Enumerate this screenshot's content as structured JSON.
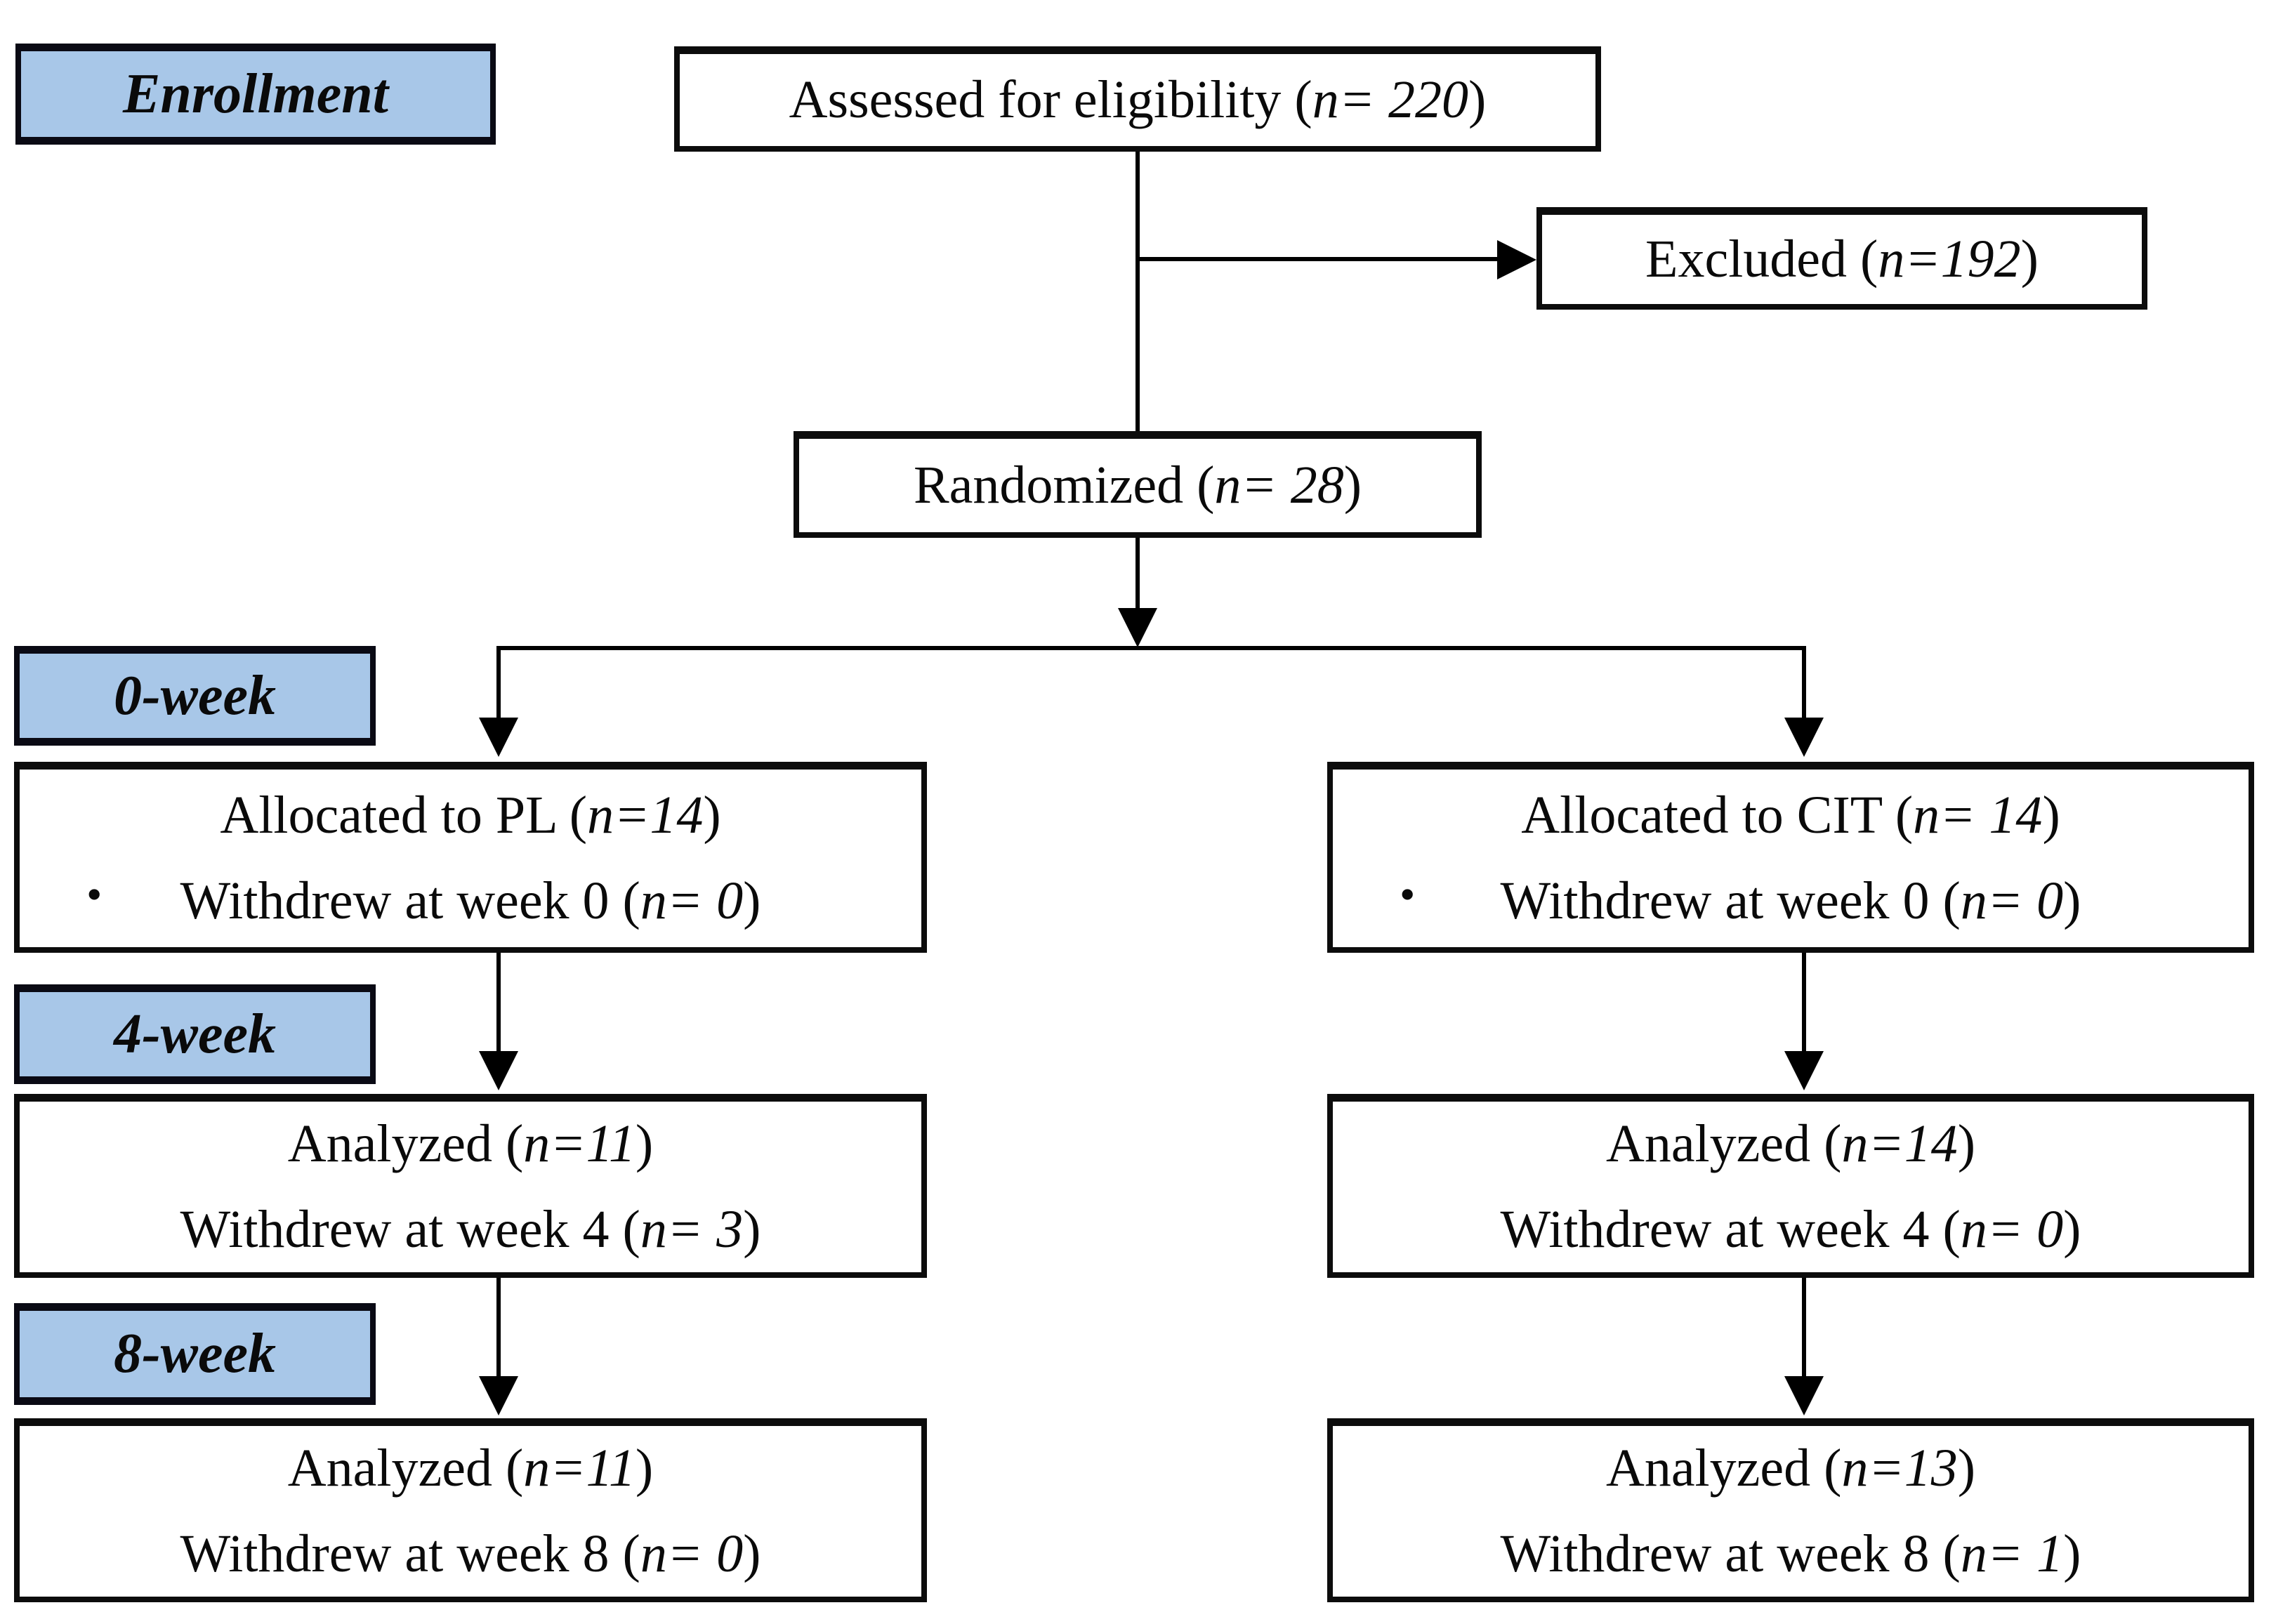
{
  "palette": {
    "stage_fill": "#a8c7e8",
    "stage_border": "#0a0a14",
    "box_border": "#0c0c0c",
    "line": "#000000",
    "background": "#ffffff"
  },
  "stages": {
    "enrollment": "Enrollment",
    "week0": "0-week",
    "week4": "4-week",
    "week8": "8-week"
  },
  "bullet": "•",
  "boxes": {
    "assessed": {
      "pre": "Assessed for eligibility (",
      "n": "n= 220",
      "post": ")"
    },
    "excluded": {
      "pre": "Excluded (",
      "n": "n=192",
      "post": ")"
    },
    "randomized": {
      "pre": "Randomized (",
      "n": "n= 28",
      "post": ")"
    },
    "allocated_pl": {
      "line1": {
        "pre": "Allocated to PL (",
        "n": "n=14",
        "post": ")"
      },
      "line2": {
        "pre": "Withdrew at week 0 (",
        "n": "n= 0",
        "post": ")"
      }
    },
    "allocated_cit": {
      "line1": {
        "pre": "Allocated to CIT (",
        "n": "n= 14",
        "post": ")"
      },
      "line2": {
        "pre": "Withdrew at week 0 (",
        "n": "n= 0",
        "post": ")"
      }
    },
    "analyzed4_pl": {
      "line1": {
        "pre": "Analyzed (",
        "n": "n=11",
        "post": ")"
      },
      "line2": {
        "pre": "Withdrew at week 4 (",
        "n": "n= 3",
        "post": ")"
      }
    },
    "analyzed4_cit": {
      "line1": {
        "pre": "Analyzed (",
        "n": "n=14",
        "post": ")"
      },
      "line2": {
        "pre": "Withdrew at week 4 (",
        "n": "n= 0",
        "post": ")"
      }
    },
    "analyzed8_pl": {
      "line1": {
        "pre": "Analyzed (",
        "n": "n=11",
        "post": ")"
      },
      "line2": {
        "pre": "Withdrew at week 8 (",
        "n": "n= 0",
        "post": ")"
      }
    },
    "analyzed8_cit": {
      "line1": {
        "pre": "Analyzed (",
        "n": "n=13",
        "post": ")"
      },
      "line2": {
        "pre": "Withdrew at week 8 (",
        "n": "n= 1",
        "post": ")"
      }
    }
  }
}
